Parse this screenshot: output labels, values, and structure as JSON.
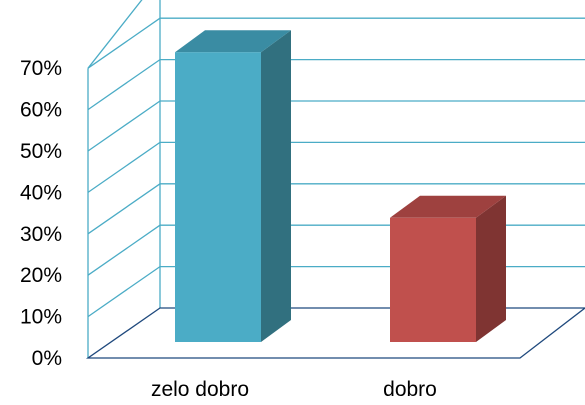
{
  "chart_data": {
    "type": "bar",
    "categories": [
      "zelo dobro",
      "dobro"
    ],
    "values": [
      70,
      30
    ],
    "ylim": [
      0,
      70
    ],
    "yticks": [
      "0%",
      "10%",
      "20%",
      "30%",
      "40%",
      "50%",
      "60%",
      "70%"
    ],
    "grid": true,
    "legend": "none",
    "bar_colors": [
      {
        "front": "#4BACC6",
        "side": "#31707F",
        "top": "#3A8CA3"
      },
      {
        "front": "#C0504D",
        "side": "#7F3432",
        "top": "#9E413F"
      }
    ],
    "grid_color": "#4BACC6",
    "floor_color": "#1F497D"
  }
}
